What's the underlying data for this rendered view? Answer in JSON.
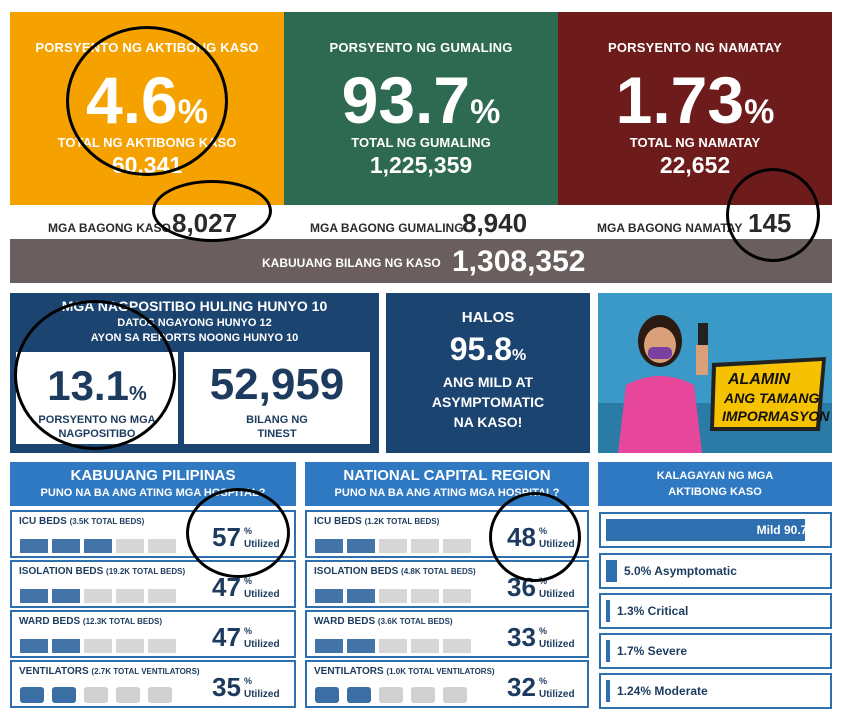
{
  "top_stats": {
    "active": {
      "label": "PORSYENTO NG AKTIBONG KASO",
      "percent": "4.6",
      "pct_sign": "%",
      "total_label": "TOTAL NG AKTIBONG KASO",
      "total": "60,341",
      "color": "#f5a100"
    },
    "recovered": {
      "label": "PORSYENTO NG GUMALING",
      "percent": "93.7",
      "pct_sign": "%",
      "total_label": "TOTAL NG GUMALING",
      "total": "1,225,359",
      "color": "#2e6a52"
    },
    "deaths": {
      "label": "PORSYENTO NG NAMATAY",
      "percent": "1.73",
      "pct_sign": "%",
      "total_label": "TOTAL NG NAMATAY",
      "total": "22,652",
      "color": "#6e1b1b"
    }
  },
  "new_counts": {
    "new_cases_label": "MGA BAGONG KASO",
    "new_cases": "8,027",
    "new_recovered_label": "MGA BAGONG GUMALING",
    "new_recovered": "8,940",
    "new_deaths_label": "MGA BAGONG NAMATAY",
    "new_deaths": "145"
  },
  "total_cases": {
    "label": "KABUUANG BILANG NG KASO",
    "value": "1,308,352"
  },
  "positivity": {
    "title": "MGA NAGPOSITIBO HULING HUNYO 10",
    "sub1": "DATOS NGAYONG HUNYO 12",
    "sub2": "AYON SA REPORTS NOONG HUNYO 10",
    "rate": "13.1",
    "rate_sign": "%",
    "rate_label1": "PORSYENTO NG MGA",
    "rate_label2": "NAGPOSITIBO",
    "tested": "52,959",
    "tested_label1": "BILANG NG",
    "tested_label2": "TINEST"
  },
  "mild": {
    "line1": "HALOS",
    "value": "95.8",
    "sign": "%",
    "line2": "ANG MILD AT",
    "line3": "ASYMPTOMATIC",
    "line4": "NA KASO!"
  },
  "promo": {
    "l1": "ALAMIN",
    "l2": "ANG TAMANG",
    "l3": "IMPORMASYON"
  },
  "ph": {
    "title": "KABUUANG PILIPINAS",
    "subtitle": "PUNO NA BA ANG ATING MGA HOSPITAL?",
    "rows": [
      {
        "name": "ICU BEDS",
        "total": "(3.5K TOTAL BEDS)",
        "pct": "57",
        "util": 0.57
      },
      {
        "name": "ISOLATION BEDS",
        "total": "(19.2K TOTAL BEDS)",
        "pct": "47",
        "util": 0.47
      },
      {
        "name": "WARD BEDS",
        "total": "(12.3K TOTAL BEDS)",
        "pct": "47",
        "util": 0.47
      },
      {
        "name": "VENTILATORS",
        "total": "(2.7K TOTAL VENTILATORS)",
        "pct": "35",
        "util": 0.35
      }
    ]
  },
  "ncr": {
    "title": "NATIONAL CAPITAL REGION",
    "subtitle": "PUNO NA BA ANG ATING MGA HOSPITAL?",
    "rows": [
      {
        "name": "ICU BEDS",
        "total": "(1.2K TOTAL BEDS)",
        "pct": "48",
        "util": 0.48
      },
      {
        "name": "ISOLATION BEDS",
        "total": "(4.8K TOTAL BEDS)",
        "pct": "36",
        "util": 0.36
      },
      {
        "name": "WARD BEDS",
        "total": "(3.6K TOTAL BEDS)",
        "pct": "33",
        "util": 0.33
      },
      {
        "name": "VENTILATORS",
        "total": "(1.0K TOTAL VENTILATORS)",
        "pct": "32",
        "util": 0.32
      }
    ]
  },
  "util_sign": "%",
  "util_label": "Utilized",
  "condition": {
    "title1": "KALAGAYAN NG MGA",
    "title2": "AKTIBONG KASO",
    "rows": [
      {
        "label": "Mild 90.7%",
        "frac": 0.907
      },
      {
        "label": "5.0% Asymptomatic",
        "frac": 0.05
      },
      {
        "label": "1.3% Critical",
        "frac": 0.013
      },
      {
        "label": "1.7% Severe",
        "frac": 0.017
      },
      {
        "label": "1.24% Moderate",
        "frac": 0.0124
      }
    ]
  }
}
